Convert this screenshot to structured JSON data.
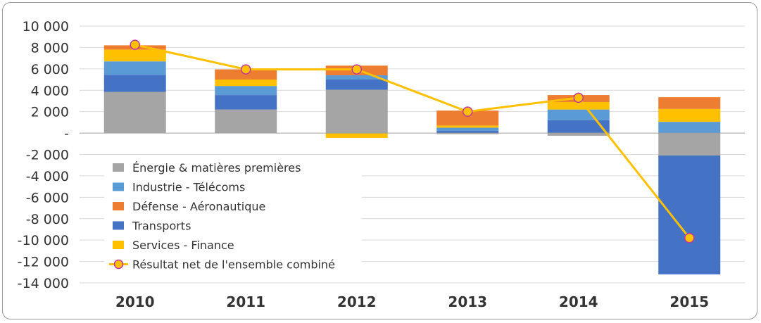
{
  "chart_data": {
    "type": "bar",
    "stacked": true,
    "categories": [
      "2010",
      "2011",
      "2012",
      "2013",
      "2014",
      "2015"
    ],
    "ylim": [
      -14000,
      10000
    ],
    "yticks": [
      10000,
      8000,
      6000,
      4000,
      2000,
      0,
      -2000,
      -4000,
      -6000,
      -8000,
      -10000,
      -12000,
      -14000
    ],
    "ytick_labels": [
      "10 000",
      "8 000",
      "6 000",
      "4 000",
      "2 000",
      "-",
      "-2 000",
      "-4 000",
      "-6 000",
      "-8 000",
      "-10 000",
      "-12 000",
      "-14 000"
    ],
    "grid": true,
    "legend_position": "lower-left",
    "series": [
      {
        "name": "Énergie & matières premières",
        "color": "#a5a5a5",
        "values": [
          3850,
          2200,
          4050,
          -100,
          -250,
          -2100
        ]
      },
      {
        "name": "Transports",
        "color": "#4472c4",
        "values": [
          1600,
          1350,
          950,
          200,
          1200,
          -11100
        ]
      },
      {
        "name": "Industrie - Télécoms",
        "color": "#5b9bd5",
        "values": [
          1250,
          850,
          400,
          300,
          1000,
          1050
        ]
      },
      {
        "name": "Services - Finance",
        "color": "#ffc000",
        "values": [
          1100,
          600,
          -450,
          200,
          700,
          1200
        ]
      },
      {
        "name": "Défense - Aéronautique",
        "color": "#ed7d31",
        "values": [
          400,
          950,
          900,
          1400,
          650,
          1100
        ]
      }
    ],
    "line_series": {
      "name": "Résultat net de l'ensemble combiné",
      "color": "#ffc000",
      "marker_fill": "#ffc000",
      "marker_edge": "#c0379a",
      "values": [
        8250,
        5950,
        5950,
        2000,
        3300,
        -9800
      ]
    },
    "legend_order": [
      "Énergie & matières premières",
      "Industrie - Télécoms",
      "Défense - Aéronautique",
      "Transports",
      "Services - Finance",
      "Résultat net de l'ensemble combiné"
    ]
  }
}
